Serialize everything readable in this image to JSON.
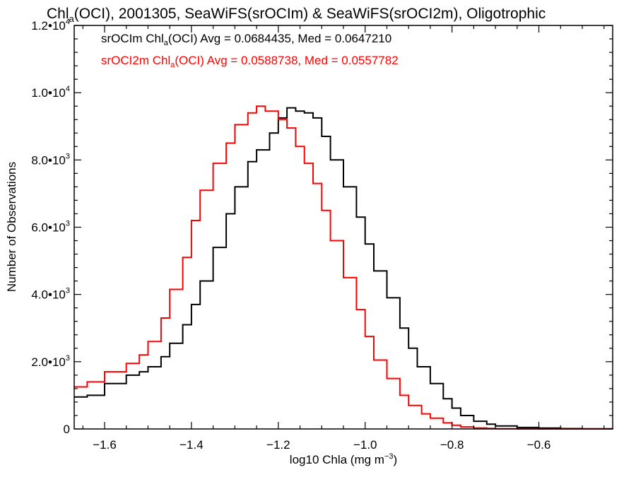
{
  "chart_data": {
    "type": "line",
    "title": {
      "pre": "Chl",
      "sub": "a",
      "post": "(OCI), 2001305, SeaWiFS(srOCIm) & SeaWiFS(srOCI2m), Oligotrophic"
    },
    "xlabel": {
      "pre": "log10 Chla (mg m",
      "sup": "−3",
      "post": ")"
    },
    "ylabel": "Number of Observations",
    "xlim": [
      -1.67,
      -0.43
    ],
    "ylim": [
      0,
      12000
    ],
    "x_ticks": [
      {
        "value": -1.6,
        "label": "−1.6"
      },
      {
        "value": -1.4,
        "label": "−1.4"
      },
      {
        "value": -1.2,
        "label": "−1.2"
      },
      {
        "value": -1.0,
        "label": "−1.0"
      },
      {
        "value": -0.8,
        "label": "−0.8"
      },
      {
        "value": -0.6,
        "label": "−0.6"
      }
    ],
    "y_ticks": [
      {
        "value": 0,
        "mant": "0",
        "exp": ""
      },
      {
        "value": 2000,
        "mant": "2.0•10",
        "exp": "3"
      },
      {
        "value": 4000,
        "mant": "4.0•10",
        "exp": "3"
      },
      {
        "value": 6000,
        "mant": "6.0•10",
        "exp": "3"
      },
      {
        "value": 8000,
        "mant": "8.0•10",
        "exp": "3"
      },
      {
        "value": 10000,
        "mant": "1.0•10",
        "exp": "4"
      },
      {
        "value": 12000,
        "mant": "1.2•10",
        "exp": "4"
      }
    ],
    "series": [
      {
        "color": "#000000",
        "legend": {
          "pre": "srOCIm Chl",
          "sub": "a",
          "post": "(OCI) Avg = 0.0684435, Med = 0.0647210"
        },
        "x": [
          -1.67,
          -1.64,
          -1.6,
          -1.55,
          -1.52,
          -1.5,
          -1.47,
          -1.45,
          -1.42,
          -1.4,
          -1.38,
          -1.35,
          -1.32,
          -1.3,
          -1.27,
          -1.25,
          -1.22,
          -1.2,
          -1.18,
          -1.16,
          -1.14,
          -1.12,
          -1.1,
          -1.08,
          -1.05,
          -1.02,
          -1.0,
          -0.98,
          -0.95,
          -0.92,
          -0.9,
          -0.88,
          -0.85,
          -0.82,
          -0.8,
          -0.78,
          -0.75,
          -0.72,
          -0.7,
          -0.65,
          -0.6,
          -0.55,
          -0.5,
          -0.43
        ],
        "y": [
          950,
          1000,
          1350,
          1600,
          1700,
          1850,
          2150,
          2550,
          3100,
          3700,
          4400,
          5400,
          6400,
          7200,
          7950,
          8300,
          8800,
          9250,
          9550,
          9450,
          9400,
          9250,
          8700,
          8000,
          7200,
          6300,
          5500,
          4700,
          3900,
          3000,
          2400,
          1850,
          1350,
          900,
          620,
          400,
          230,
          140,
          90,
          45,
          25,
          10,
          5,
          0
        ]
      },
      {
        "color": "#ff0000",
        "legend": {
          "pre": "srOCI2m Chl",
          "sub": "a",
          "post": "(OCI) Avg = 0.0588738, Med = 0.0557782"
        },
        "x": [
          -1.67,
          -1.64,
          -1.6,
          -1.55,
          -1.52,
          -1.5,
          -1.47,
          -1.45,
          -1.42,
          -1.4,
          -1.38,
          -1.35,
          -1.32,
          -1.3,
          -1.27,
          -1.25,
          -1.23,
          -1.2,
          -1.18,
          -1.16,
          -1.14,
          -1.12,
          -1.1,
          -1.08,
          -1.05,
          -1.02,
          -1.0,
          -0.98,
          -0.95,
          -0.92,
          -0.9,
          -0.87,
          -0.85,
          -0.82,
          -0.8,
          -0.78,
          -0.75,
          -0.72,
          -0.7,
          -0.65,
          -0.6,
          -0.55,
          -0.5,
          -0.43
        ],
        "y": [
          1250,
          1400,
          1700,
          1950,
          2200,
          2600,
          3300,
          4150,
          5100,
          6200,
          7100,
          7900,
          8500,
          9050,
          9400,
          9600,
          9450,
          9200,
          8950,
          8400,
          7900,
          7300,
          6500,
          5600,
          4500,
          3550,
          2750,
          2050,
          1500,
          1000,
          700,
          450,
          320,
          180,
          110,
          60,
          30,
          15,
          8,
          3,
          1,
          0,
          0,
          0
        ]
      }
    ],
    "grid": false
  }
}
